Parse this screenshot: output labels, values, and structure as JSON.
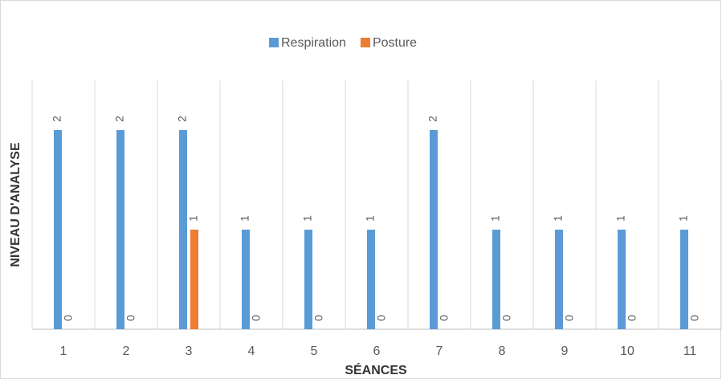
{
  "chart_data": {
    "type": "bar",
    "x_label": "SÉANCES",
    "y_label": "NIVEAU D'ANALYSE",
    "categories": [
      "1",
      "2",
      "3",
      "4",
      "5",
      "6",
      "7",
      "8",
      "9",
      "10",
      "11"
    ],
    "series": [
      {
        "name": "Respiration",
        "color": "#5b9bd5",
        "values": [
          2,
          2,
          2,
          1,
          1,
          1,
          2,
          1,
          1,
          1,
          1
        ]
      },
      {
        "name": "Posture",
        "color": "#ed7d31",
        "values": [
          0,
          0,
          1,
          0,
          0,
          0,
          0,
          0,
          0,
          0,
          0
        ]
      }
    ],
    "ylim": [
      0,
      2.5
    ],
    "legend": "top",
    "grid": "x"
  }
}
